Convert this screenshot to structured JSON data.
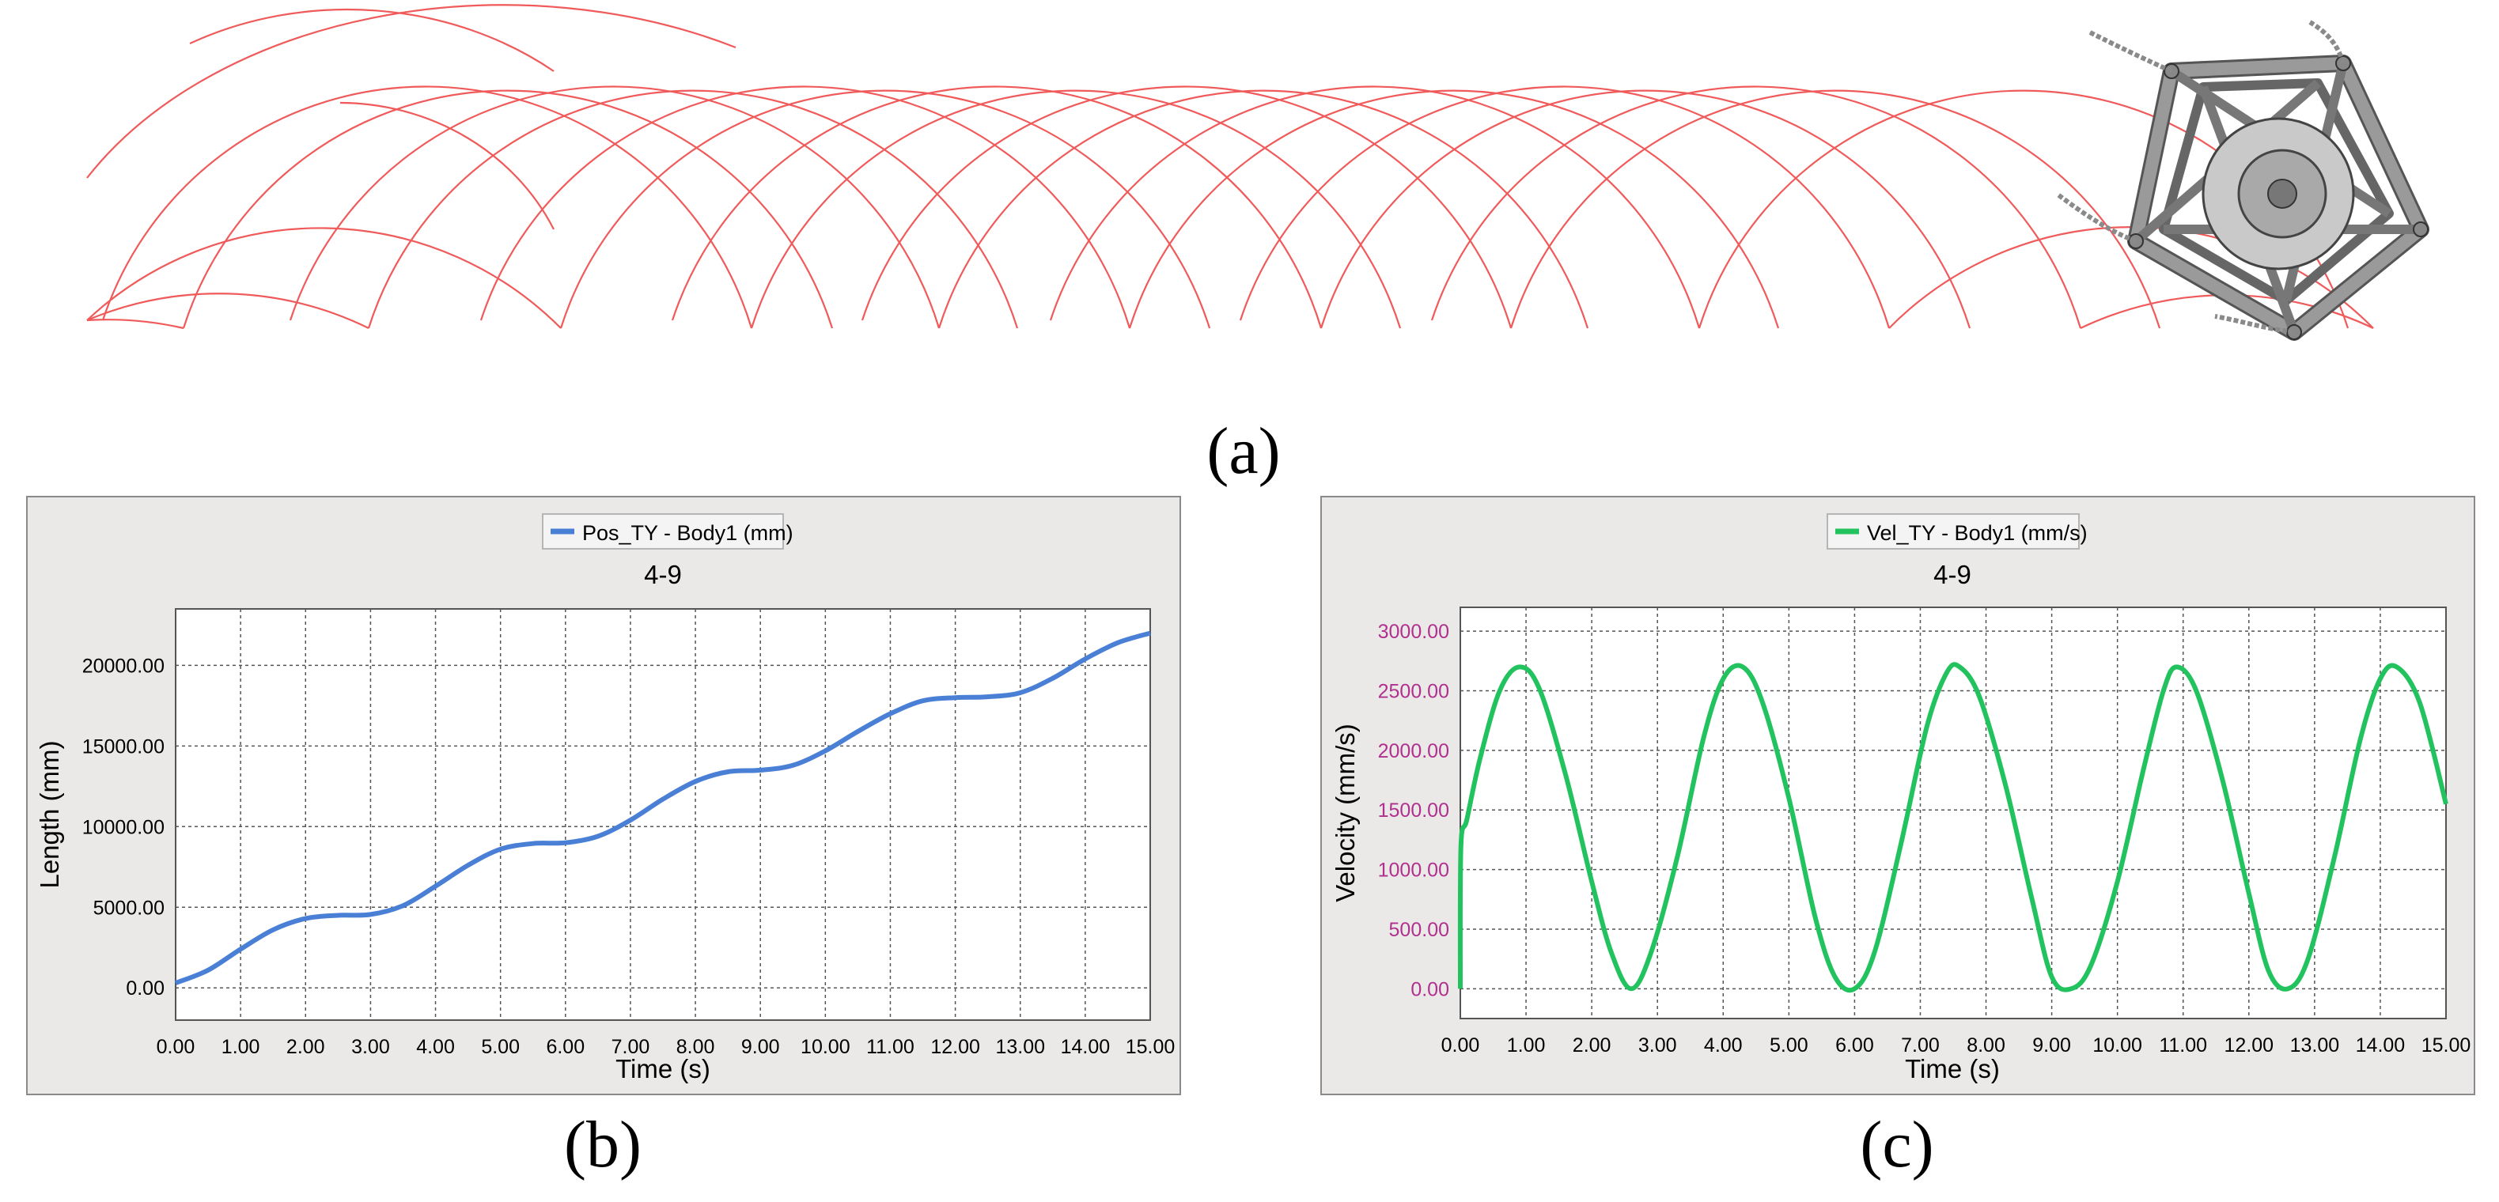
{
  "panel_labels": {
    "a": "(a)",
    "b": "(b)",
    "c": "(c)"
  },
  "colors": {
    "trajectory": "#f05a5a",
    "position_line": "#4a7fd6",
    "velocity_line": "#22c35e",
    "velocity_ticks": "#b0308f",
    "panel_bg": "#ebe9e7",
    "plot_bg": "#ffffff",
    "grid": "#444444",
    "robot_body": "#9a9a9a"
  },
  "chart_data": [
    {
      "type": "line",
      "title": "4-9",
      "xlabel": "Time (s)",
      "ylabel": "Length (mm)",
      "xlim": [
        0,
        15
      ],
      "ylim": [
        -2000,
        23500
      ],
      "xticks": [
        "0.00",
        "1.00",
        "2.00",
        "3.00",
        "4.00",
        "5.00",
        "6.00",
        "7.00",
        "8.00",
        "9.00",
        "10.00",
        "11.00",
        "12.00",
        "13.00",
        "14.00",
        "15.00"
      ],
      "yticks": [
        "0.00",
        "5000.00",
        "10000.00",
        "15000.00",
        "20000.00"
      ],
      "ytick_values": [
        0,
        5000,
        10000,
        15000,
        20000
      ],
      "grid": true,
      "legend_position": "top-center",
      "series": [
        {
          "name": "Pos_TY - Body1 (mm)",
          "x": [
            0,
            0.5,
            1,
            1.5,
            2,
            2.5,
            3,
            3.5,
            4,
            4.5,
            5,
            5.5,
            6,
            6.5,
            7,
            7.5,
            8,
            8.5,
            9,
            9.5,
            10,
            10.5,
            11,
            11.5,
            12,
            12.5,
            13,
            13.5,
            14,
            14.5,
            15
          ],
          "y": [
            300,
            1100,
            2400,
            3600,
            4300,
            4500,
            4550,
            5100,
            6300,
            7600,
            8600,
            8950,
            9000,
            9400,
            10400,
            11700,
            12800,
            13400,
            13500,
            13800,
            14700,
            15900,
            17000,
            17800,
            18000,
            18050,
            18300,
            19200,
            20400,
            21400,
            22000
          ]
        }
      ]
    },
    {
      "type": "line",
      "title": "4-9",
      "xlabel": "Time (s)",
      "ylabel": "Velocity (mm/s)",
      "xlim": [
        0,
        15
      ],
      "ylim": [
        -250,
        3200
      ],
      "xticks": [
        "0.00",
        "1.00",
        "2.00",
        "3.00",
        "4.00",
        "5.00",
        "6.00",
        "7.00",
        "8.00",
        "9.00",
        "10.00",
        "11.00",
        "12.00",
        "13.00",
        "14.00",
        "15.00"
      ],
      "yticks": [
        "0.00",
        "500.00",
        "1000.00",
        "1500.00",
        "2000.00",
        "2500.00",
        "3000.00"
      ],
      "ytick_values": [
        0,
        500,
        1000,
        1500,
        2000,
        2500,
        3000
      ],
      "grid": true,
      "legend_position": "top-center",
      "series": [
        {
          "name": "Vel_TY - Body1 (mm/s)",
          "x": [
            0,
            0.01,
            0.1,
            0.3,
            0.6,
            0.9,
            1.2,
            1.6,
            2,
            2.3,
            2.6,
            2.9,
            3.3,
            3.7,
            4,
            4.3,
            4.6,
            5,
            5.4,
            5.7,
            6,
            6.3,
            6.7,
            7.1,
            7.4,
            7.6,
            7.9,
            8.3,
            8.7,
            9,
            9.3,
            9.6,
            10,
            10.4,
            10.7,
            10.9,
            11.2,
            11.6,
            12,
            12.3,
            12.6,
            12.9,
            13.3,
            13.7,
            14,
            14.25,
            14.6,
            15
          ],
          "y": [
            0,
            1200,
            1420,
            1930,
            2500,
            2700,
            2520,
            1800,
            900,
            300,
            0,
            300,
            1100,
            2100,
            2600,
            2700,
            2400,
            1600,
            600,
            100,
            0,
            300,
            1200,
            2200,
            2650,
            2700,
            2450,
            1700,
            750,
            100,
            0,
            200,
            900,
            1850,
            2500,
            2700,
            2500,
            1750,
            800,
            150,
            0,
            250,
            1100,
            2100,
            2600,
            2700,
            2400,
            1550
          ]
        }
      ]
    }
  ]
}
